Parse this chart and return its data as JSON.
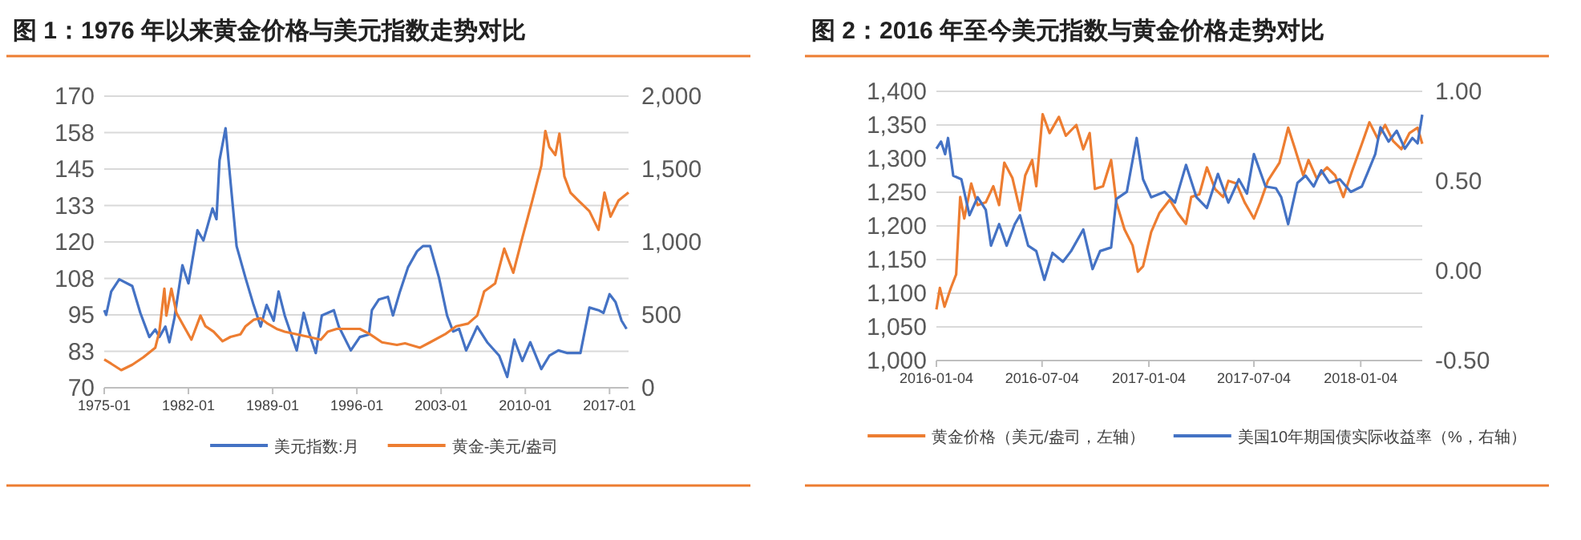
{
  "chart_data": [
    {
      "type": "line",
      "title": "图 1：1976 年以来黄金价格与美元指数走势对比",
      "xlim": [
        "1975-01",
        "2018-08"
      ],
      "xticks": [
        "1975-01",
        "1982-01",
        "1989-01",
        "1996-01",
        "2003-01",
        "2010-01",
        "2017-01"
      ],
      "ylim": [
        70,
        170
      ],
      "yticks": [
        70,
        {
          "value": 82.5,
          "label": "83"
        },
        95,
        {
          "value": 107.5,
          "label": "108"
        },
        120,
        {
          "value": 132.5,
          "label": "133"
        },
        145,
        {
          "value": 157.5,
          "label": "158"
        },
        170
      ],
      "y2lim": [
        0,
        2000
      ],
      "y2ticks": [
        0,
        500,
        {
          "value": 1000,
          "label": "1,000"
        },
        {
          "value": 1500,
          "label": "1,500"
        },
        {
          "value": 2000,
          "label": "2,000"
        }
      ],
      "grid": "y",
      "legend": "bottom",
      "series": [
        {
          "name": "美元指数:月",
          "color": "#4472c4",
          "x": [
            "1975-01",
            "1975-03",
            "1975-08",
            "1976-04",
            "1977-05",
            "1978-01",
            "1978-10",
            "1979-04",
            "1979-08",
            "1980-02",
            "1980-06",
            "1980-11",
            "1981-07",
            "1982-01",
            "1982-10",
            "1983-04",
            "1984-01",
            "1984-05",
            "1984-08",
            "1985-02",
            "1985-05",
            "1986-01",
            "1986-10",
            "1987-06",
            "1988-01",
            "1988-07",
            "1989-02",
            "1989-07",
            "1990-01",
            "1991-01",
            "1991-08",
            "1992-01",
            "1992-08",
            "1993-02",
            "1994-02",
            "1994-07",
            "1995-07",
            "1996-04",
            "1997-01",
            "1997-04",
            "1997-11",
            "1998-08",
            "1999-01",
            "1999-08",
            "2000-04",
            "2001-01",
            "2001-07",
            "2002-02",
            "2002-11",
            "2003-07",
            "2004-01",
            "2004-07",
            "2005-02",
            "2006-01",
            "2006-11",
            "2007-11",
            "2008-07",
            "2009-02",
            "2009-10",
            "2010-06",
            "2011-05",
            "2012-01",
            "2012-10",
            "2013-07",
            "2014-08",
            "2015-05",
            "2016-02",
            "2016-07",
            "2017-01",
            "2017-07",
            "2018-01",
            "2018-06"
          ],
          "values": [
            96.6,
            95,
            103,
            107.2,
            104.9,
            95.7,
            87.4,
            90,
            87.4,
            91,
            85.6,
            93.9,
            112,
            105.8,
            124,
            120.5,
            131.5,
            127.8,
            148,
            159,
            148,
            118.6,
            107.6,
            98.4,
            91,
            98.4,
            93,
            103,
            94.8,
            82.8,
            95.7,
            89.3,
            81.9,
            94.8,
            96.6,
            91,
            82.8,
            87.4,
            88.3,
            96.6,
            100.3,
            101.2,
            94.8,
            103,
            111.3,
            116.8,
            118.6,
            118.6,
            107.6,
            94.8,
            89.3,
            90.2,
            82.8,
            91,
            85.6,
            81,
            73.7,
            86.5,
            79.2,
            85.6,
            76.4,
            81,
            82.8,
            81.9,
            81.9,
            97.5,
            96.6,
            95.7,
            102.1,
            99.4,
            93,
            90.2
          ]
        },
        {
          "name": "黄金-美元/盎司",
          "color": "#ed7d31",
          "axis": "y2",
          "x": [
            "1975-01",
            "1975-08",
            "1976-06",
            "1977-05",
            "1978-04",
            "1979-04",
            "1979-08",
            "1980-01",
            "1980-03",
            "1980-08",
            "1981-01",
            "1981-07",
            "1982-04",
            "1983-01",
            "1983-06",
            "1984-02",
            "1984-11",
            "1985-07",
            "1986-05",
            "1986-10",
            "1987-06",
            "1988-01",
            "1988-08",
            "1989-05",
            "1990-01",
            "1991-01",
            "1992-01",
            "1993-01",
            "1993-08",
            "1994-05",
            "1996-04",
            "1997-02",
            "1998-02",
            "1999-05",
            "2000-01",
            "2001-04",
            "2002-02",
            "2003-05",
            "2004-04",
            "2005-04",
            "2006-01",
            "2006-08",
            "2007-07",
            "2008-04",
            "2009-01",
            "2009-10",
            "2010-08",
            "2011-05",
            "2011-09",
            "2012-01",
            "2012-07",
            "2012-11",
            "2013-04",
            "2013-10",
            "2014-06",
            "2015-05",
            "2016-02",
            "2016-08",
            "2017-02",
            "2017-10",
            "2018-08"
          ],
          "values": [
            194,
            165,
            121,
            158,
            209,
            275,
            385,
            679,
            495,
            679,
            514,
            440,
            330,
            495,
            422,
            385,
            319,
            349,
            367,
            422,
            466,
            477,
            440,
            404,
            385,
            367,
            349,
            330,
            385,
            404,
            404,
            367,
            312,
            294,
            305,
            275,
            312,
            367,
            422,
            440,
            495,
            661,
            716,
            954,
            789,
            1028,
            1284,
            1523,
            1761,
            1651,
            1596,
            1743,
            1450,
            1339,
            1284,
            1211,
            1083,
            1339,
            1174,
            1284,
            1339
          ]
        }
      ]
    },
    {
      "type": "line",
      "title": "图 2：2016 年至今美元指数与黄金价格走势对比",
      "xlim": [
        "2016-01-04",
        "2018-04-20"
      ],
      "xticks": [
        "2016-01-04",
        "2016-07-04",
        "2017-01-04",
        "2017-07-04",
        "2018-01-04"
      ],
      "ylim": [
        1000,
        1400
      ],
      "yticks": [
        {
          "value": 1000,
          "label": "1,000"
        },
        {
          "value": 1050,
          "label": "1,050"
        },
        {
          "value": 1100,
          "label": "1,100"
        },
        {
          "value": 1150,
          "label": "1,150"
        },
        {
          "value": 1200,
          "label": "1,200"
        },
        {
          "value": 1250,
          "label": "1,250"
        },
        {
          "value": 1300,
          "label": "1,300"
        },
        {
          "value": 1350,
          "label": "1,350"
        },
        {
          "value": 1400,
          "label": "1,400"
        }
      ],
      "y2lim": [
        -0.5,
        1
      ],
      "y2ticks": [
        {
          "value": -0.5,
          "label": "-0.50"
        },
        {
          "value": 0,
          "label": "0.00"
        },
        {
          "value": 0.5,
          "label": "0.50"
        },
        {
          "value": 1,
          "label": "1.00"
        }
      ],
      "grid": "y",
      "legend": "bottom",
      "series": [
        {
          "name": "黄金价格（美元/盎司，左轴）",
          "color": "#ed7d31",
          "x": [
            "2016-01-04",
            "2016-01-10",
            "2016-01-18",
            "2016-01-29",
            "2016-02-07",
            "2016-02-14",
            "2016-02-21",
            "2016-03-04",
            "2016-03-15",
            "2016-03-29",
            "2016-04-11",
            "2016-04-21",
            "2016-04-30",
            "2016-05-14",
            "2016-05-27",
            "2016-06-05",
            "2016-06-17",
            "2016-06-24",
            "2016-07-05",
            "2016-07-17",
            "2016-08-02",
            "2016-08-14",
            "2016-09-01",
            "2016-09-13",
            "2016-09-24",
            "2016-10-03",
            "2016-10-17",
            "2016-10-31",
            "2016-11-09",
            "2016-11-23",
            "2016-12-07",
            "2016-12-16",
            "2016-12-25",
            "2017-01-08",
            "2017-01-22",
            "2017-02-09",
            "2017-02-23",
            "2017-03-09",
            "2017-03-18",
            "2017-04-01",
            "2017-04-14",
            "2017-04-28",
            "2017-05-12",
            "2017-05-21",
            "2017-06-04",
            "2017-06-18",
            "2017-07-04",
            "2017-07-15",
            "2017-07-28",
            "2017-08-17",
            "2017-09-01",
            "2017-09-13",
            "2017-09-27",
            "2017-10-06",
            "2017-10-20",
            "2017-11-07",
            "2017-11-21",
            "2017-12-05",
            "2017-12-19",
            "2018-01-06",
            "2018-01-19",
            "2018-02-02",
            "2018-02-15",
            "2018-03-01",
            "2018-03-15",
            "2018-03-29",
            "2018-04-12",
            "2018-04-20"
          ],
          "values": [
            1076,
            1108,
            1080,
            1108,
            1128,
            1243,
            1211,
            1263,
            1231,
            1235,
            1259,
            1231,
            1294,
            1271,
            1223,
            1275,
            1298,
            1259,
            1366,
            1338,
            1362,
            1334,
            1350,
            1314,
            1338,
            1255,
            1259,
            1298,
            1235,
            1195,
            1171,
            1132,
            1140,
            1191,
            1219,
            1239,
            1219,
            1203,
            1243,
            1247,
            1287,
            1255,
            1243,
            1267,
            1263,
            1235,
            1211,
            1235,
            1267,
            1294,
            1346,
            1314,
            1275,
            1298,
            1271,
            1287,
            1275,
            1243,
            1279,
            1322,
            1354,
            1330,
            1350,
            1326,
            1314,
            1338,
            1346,
            1322
          ]
        },
        {
          "name": "美国10年期国债实际收益率（%，右轴）",
          "color": "#4472c4",
          "axis": "y2",
          "x": [
            "2016-01-04",
            "2016-01-12",
            "2016-01-19",
            "2016-01-24",
            "2016-02-02",
            "2016-02-16",
            "2016-03-01",
            "2016-03-15",
            "2016-03-29",
            "2016-04-07",
            "2016-04-21",
            "2016-05-04",
            "2016-05-18",
            "2016-05-27",
            "2016-06-10",
            "2016-06-24",
            "2016-07-08",
            "2016-07-22",
            "2016-08-09",
            "2016-08-23",
            "2016-09-13",
            "2016-09-29",
            "2016-10-12",
            "2016-10-31",
            "2016-11-09",
            "2016-11-27",
            "2016-12-14",
            "2016-12-25",
            "2017-01-08",
            "2017-01-31",
            "2017-02-18",
            "2017-03-09",
            "2017-03-27",
            "2017-04-14",
            "2017-05-03",
            "2017-05-21",
            "2017-06-08",
            "2017-06-22",
            "2017-07-04",
            "2017-07-24",
            "2017-08-11",
            "2017-08-20",
            "2017-09-01",
            "2017-09-17",
            "2017-10-01",
            "2017-10-15",
            "2017-10-28",
            "2017-11-11",
            "2017-11-29",
            "2017-12-18",
            "2018-01-06",
            "2018-01-15",
            "2018-01-29",
            "2018-02-07",
            "2018-02-21",
            "2018-03-07",
            "2018-03-21",
            "2018-04-03",
            "2018-04-12",
            "2018-04-20"
          ],
          "values": [
            0.68,
            0.72,
            0.65,
            0.74,
            0.53,
            0.51,
            0.31,
            0.41,
            0.34,
            0.14,
            0.26,
            0.14,
            0.26,
            0.31,
            0.14,
            0.11,
            -0.05,
            0.1,
            0.05,
            0.11,
            0.23,
            0.01,
            0.11,
            0.13,
            0.4,
            0.44,
            0.74,
            0.51,
            0.41,
            0.44,
            0.38,
            0.59,
            0.41,
            0.35,
            0.54,
            0.38,
            0.51,
            0.43,
            0.65,
            0.47,
            0.46,
            0.41,
            0.26,
            0.49,
            0.53,
            0.47,
            0.56,
            0.49,
            0.51,
            0.44,
            0.47,
            0.54,
            0.65,
            0.8,
            0.72,
            0.78,
            0.68,
            0.74,
            0.71,
            0.87
          ]
        }
      ]
    }
  ]
}
